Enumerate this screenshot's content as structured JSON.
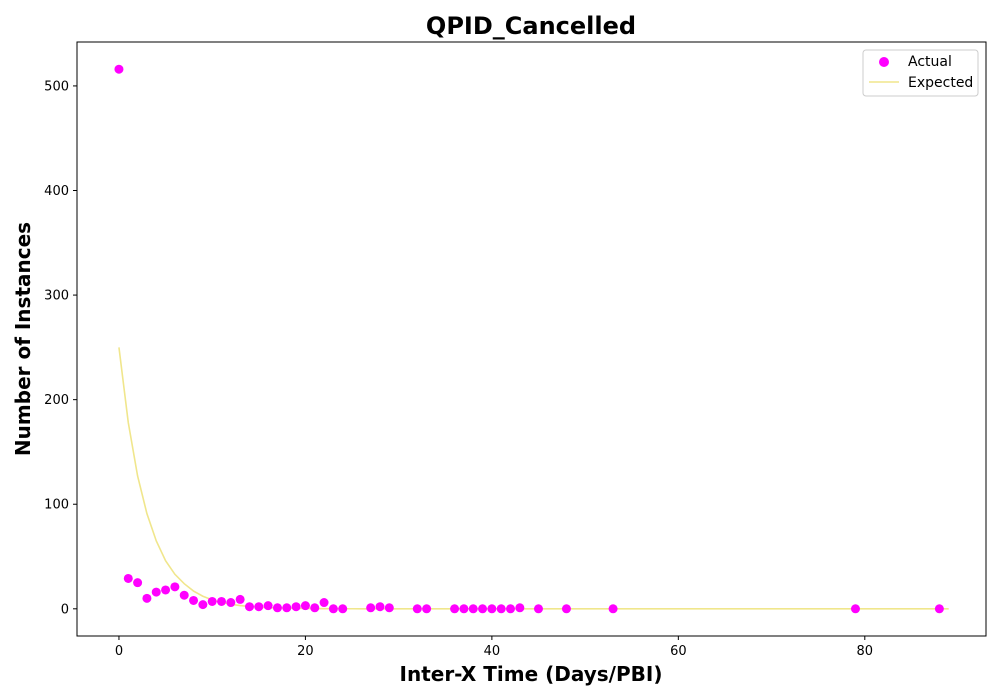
{
  "chart_data": {
    "type": "scatter",
    "title": "QPID_Cancelled",
    "xlabel": "Inter-X Time (Days/PBI)",
    "ylabel": "Number of Instances",
    "xlim": [
      -4.5,
      93
    ],
    "ylim": [
      -26,
      542
    ],
    "xticks": [
      0,
      20,
      40,
      60,
      80
    ],
    "yticks": [
      0,
      100,
      200,
      300,
      400,
      500
    ],
    "grid": false,
    "legend_position": "top-right",
    "colors": {
      "actual": "#ff00ff",
      "expected": "#f0e68c"
    },
    "series": [
      {
        "name": "Actual",
        "kind": "scatter",
        "x": [
          0,
          1,
          2,
          3,
          4,
          5,
          6,
          7,
          8,
          9,
          10,
          11,
          12,
          13,
          14,
          15,
          16,
          17,
          18,
          19,
          20,
          21,
          22,
          23,
          24,
          27,
          28,
          29,
          32,
          33,
          36,
          37,
          38,
          39,
          40,
          41,
          42,
          43,
          45,
          48,
          53,
          79,
          88
        ],
        "y": [
          516,
          29,
          25,
          10,
          16,
          18,
          21,
          13,
          8,
          4,
          7,
          7,
          6,
          9,
          2,
          2,
          3,
          1,
          1,
          2,
          3,
          1,
          6,
          0,
          0,
          1,
          2,
          1,
          0,
          0,
          0,
          0,
          0,
          0,
          0,
          0,
          0,
          1,
          0,
          0,
          0,
          0,
          0
        ]
      },
      {
        "name": "Expected",
        "kind": "line",
        "x": [
          0,
          1,
          2,
          3,
          4,
          5,
          6,
          7,
          8,
          9,
          10,
          11,
          12,
          13,
          14,
          15,
          16,
          17,
          18,
          19,
          20,
          21,
          22,
          23,
          24,
          25,
          26,
          27,
          28,
          29,
          30,
          31,
          32,
          33,
          34,
          35,
          36,
          37,
          38,
          39,
          40,
          41,
          42,
          43,
          44,
          45,
          46,
          47,
          48,
          49,
          50,
          51,
          52,
          53,
          54,
          55,
          56,
          57,
          58,
          59,
          60,
          61,
          62,
          63,
          64,
          65,
          66,
          67,
          68,
          69,
          70,
          71,
          72,
          73,
          74,
          75,
          76,
          77,
          78,
          79,
          80,
          81,
          82,
          83,
          84,
          85,
          86,
          87,
          88,
          89
        ],
        "y": [
          250,
          178,
          127,
          91,
          65,
          46,
          33,
          24,
          17,
          12,
          8.5,
          6.1,
          4.3,
          3.1,
          2.2,
          1.6,
          1.1,
          0.8,
          0.57,
          0.41,
          0.29,
          0.2,
          0.15,
          0.1,
          0.07,
          0.05,
          0.04,
          0.03,
          0.02,
          0.01,
          0.01,
          0,
          0,
          0,
          0,
          0,
          0,
          0,
          0,
          0,
          0,
          0,
          0,
          0,
          0,
          0,
          0,
          0,
          0,
          0,
          0,
          0,
          0,
          0,
          0,
          0,
          0,
          0,
          0,
          0,
          0,
          0,
          0,
          0,
          0,
          0,
          0,
          0,
          0,
          0,
          0,
          0,
          0,
          0,
          0,
          0,
          0,
          0,
          0,
          0,
          0,
          0,
          0,
          0,
          0,
          0,
          0,
          0,
          0,
          0
        ]
      }
    ]
  }
}
